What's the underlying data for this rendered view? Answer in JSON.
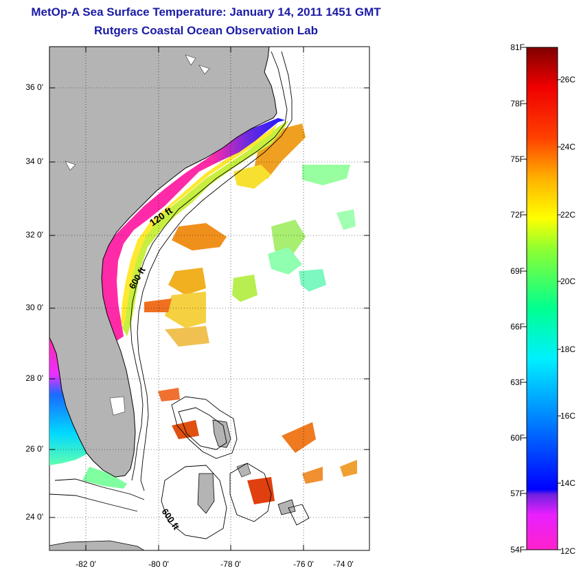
{
  "title_line1": "MetOp-A Sea Surface Temperature:  January 14, 2011 1451 GMT",
  "title_line2": "Rutgers Coastal Ocean Observation Lab",
  "lat_labels": [
    "36 0'",
    "34 0'",
    "32 0'",
    "30 0'",
    "28 0'",
    "26 0'",
    "24 0'"
  ],
  "lon_labels": [
    "-82 0'",
    "-80 0'",
    "-78 0'",
    "-76 0'",
    "-74 0'"
  ],
  "contour_labels": {
    "c120": "120 ft",
    "c600a": "600 ft",
    "c600b": "600 ft"
  },
  "colorbar": {
    "f_labels": [
      "81F",
      "78F",
      "75F",
      "72F",
      "69F",
      "66F",
      "63F",
      "60F",
      "57F",
      "54F"
    ],
    "c_labels": [
      "26C",
      "24C",
      "22C",
      "20C",
      "18C",
      "16C",
      "14C",
      "12C"
    ]
  },
  "colors": {
    "title": "#1a1aa6",
    "land": "#b4b4b4",
    "cold": "#ff2aa8",
    "warm": "#f08a20"
  }
}
